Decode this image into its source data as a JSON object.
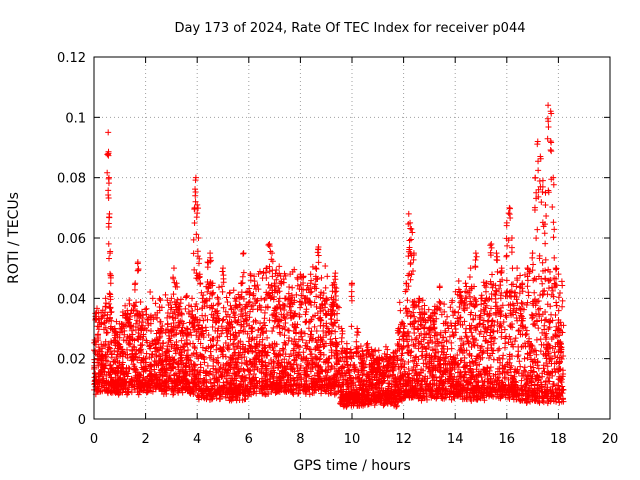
{
  "chart_data": {
    "type": "scatter",
    "title": "Day 173 of 2024, Rate Of TEC Index for receiver p044",
    "xlabel": "GPS time / hours",
    "ylabel": "ROTI / TECUs",
    "xlim": [
      0,
      20
    ],
    "ylim": [
      0,
      0.12
    ],
    "x_ticks": [
      0,
      2,
      4,
      6,
      8,
      10,
      12,
      14,
      16,
      18,
      20
    ],
    "x_tick_labels": [
      "0",
      "2",
      "4",
      "6",
      "8",
      "10",
      "12",
      "14",
      "16",
      "18",
      "20"
    ],
    "y_ticks": [
      0,
      0.02,
      0.04,
      0.06,
      0.08,
      0.1,
      0.12
    ],
    "y_tick_labels": [
      "0",
      "0.02",
      "0.04",
      "0.06",
      "0.08",
      "0.1",
      "0.12"
    ],
    "grid": true,
    "marker": "plus",
    "color": "#ff0000",
    "series": [
      {
        "name": "ROTI",
        "x": [
          0.05,
          0.15,
          0.3,
          0.45,
          0.55,
          0.58,
          0.6,
          0.62,
          0.65,
          0.8,
          0.95,
          1.1,
          1.3,
          1.5,
          1.6,
          1.7,
          1.8,
          2.0,
          2.2,
          2.4,
          2.6,
          2.8,
          3.0,
          3.1,
          3.2,
          3.4,
          3.6,
          3.8,
          3.9,
          3.95,
          4.0,
          4.05,
          4.1,
          4.2,
          4.4,
          4.5,
          4.6,
          4.8,
          5.0,
          5.2,
          5.4,
          5.5,
          5.7,
          5.8,
          5.9,
          6.1,
          6.3,
          6.5,
          6.7,
          6.8,
          6.9,
          7.0,
          7.2,
          7.4,
          7.6,
          7.8,
          8.0,
          8.2,
          8.4,
          8.6,
          8.7,
          8.8,
          9.0,
          9.2,
          9.4,
          9.6,
          9.8,
          10.0,
          10.2,
          10.4,
          10.6,
          10.8,
          11.0,
          11.2,
          11.4,
          11.6,
          11.8,
          12.0,
          12.1,
          12.2,
          12.25,
          12.3,
          12.4,
          12.6,
          12.8,
          13.0,
          13.2,
          13.4,
          13.6,
          13.8,
          14.0,
          14.2,
          14.4,
          14.6,
          14.8,
          15.0,
          15.2,
          15.4,
          15.6,
          15.8,
          16.0,
          16.1,
          16.2,
          16.4,
          16.6,
          16.8,
          17.0,
          17.1,
          17.2,
          17.3,
          17.4,
          17.5,
          17.6,
          17.7,
          17.8,
          17.9,
          18.0,
          18.1
        ],
        "y": [
          0.015,
          0.028,
          0.02,
          0.04,
          0.095,
          0.08,
          0.068,
          0.055,
          0.045,
          0.03,
          0.025,
          0.022,
          0.035,
          0.028,
          0.045,
          0.052,
          0.03,
          0.02,
          0.018,
          0.025,
          0.03,
          0.022,
          0.04,
          0.05,
          0.045,
          0.035,
          0.03,
          0.04,
          0.07,
          0.08,
          0.071,
          0.06,
          0.048,
          0.04,
          0.052,
          0.055,
          0.045,
          0.035,
          0.05,
          0.03,
          0.025,
          0.02,
          0.045,
          0.055,
          0.038,
          0.03,
          0.025,
          0.03,
          0.05,
          0.058,
          0.055,
          0.045,
          0.04,
          0.04,
          0.04,
          0.035,
          0.048,
          0.04,
          0.045,
          0.05,
          0.057,
          0.042,
          0.04,
          0.035,
          0.025,
          0.03,
          0.025,
          0.045,
          0.03,
          0.02,
          0.025,
          0.018,
          0.02,
          0.015,
          0.018,
          0.022,
          0.03,
          0.03,
          0.045,
          0.068,
          0.065,
          0.063,
          0.055,
          0.04,
          0.035,
          0.03,
          0.035,
          0.044,
          0.02,
          0.018,
          0.02,
          0.04,
          0.045,
          0.05,
          0.055,
          0.04,
          0.045,
          0.058,
          0.055,
          0.05,
          0.065,
          0.07,
          0.06,
          0.05,
          0.045,
          0.05,
          0.055,
          0.08,
          0.092,
          0.087,
          0.079,
          0.075,
          0.104,
          0.102,
          0.08,
          0.05,
          0.03,
          0.025
        ]
      }
    ],
    "background_cloud": {
      "description_free": true,
      "segments": [
        {
          "x0": 0,
          "x1": 2,
          "base": 0.008,
          "spread": 0.02
        },
        {
          "x0": 2,
          "x1": 4,
          "base": 0.008,
          "spread": 0.022
        },
        {
          "x0": 4,
          "x1": 6,
          "base": 0.006,
          "spread": 0.025
        },
        {
          "x0": 6,
          "x1": 9.5,
          "base": 0.008,
          "spread": 0.028
        },
        {
          "x0": 9.5,
          "x1": 11.8,
          "base": 0.004,
          "spread": 0.012
        },
        {
          "x0": 11.8,
          "x1": 14,
          "base": 0.006,
          "spread": 0.022
        },
        {
          "x0": 14,
          "x1": 16.5,
          "base": 0.006,
          "spread": 0.026
        },
        {
          "x0": 16.5,
          "x1": 18.2,
          "base": 0.005,
          "spread": 0.03
        }
      ]
    }
  }
}
